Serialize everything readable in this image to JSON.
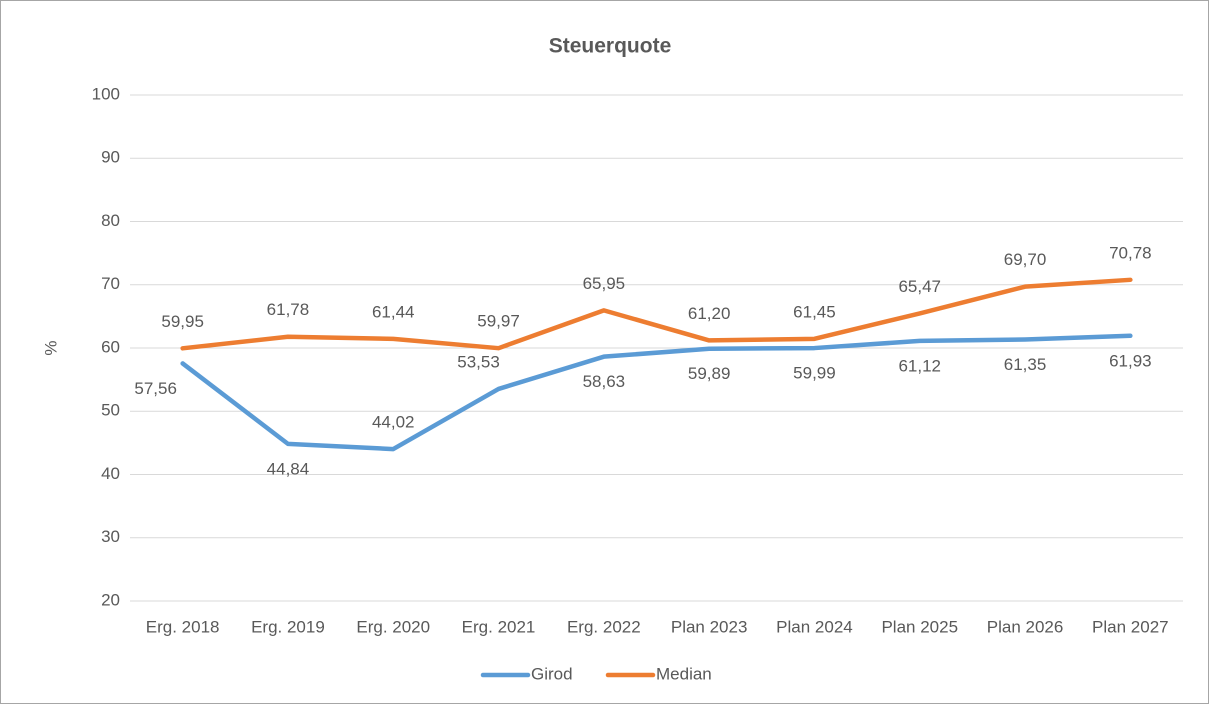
{
  "chart_data": {
    "type": "line",
    "title": "Steuerquote",
    "y_label": "%",
    "categories": [
      "Erg. 2018",
      "Erg. 2019",
      "Erg. 2020",
      "Erg. 2021",
      "Erg. 2022",
      "Plan 2023",
      "Plan 2024",
      "Plan 2025",
      "Plan 2026",
      "Plan 2027"
    ],
    "series": [
      {
        "name": "Girod",
        "color": "#5b9bd5",
        "values": [
          57.56,
          44.84,
          44.02,
          53.53,
          58.63,
          59.89,
          59.99,
          61.12,
          61.35,
          61.93
        ],
        "value_labels": [
          "57,56",
          "44,84",
          "44,02",
          "53,53",
          "58,63",
          "59,89",
          "59,99",
          "61,12",
          "61,35",
          "61,93"
        ]
      },
      {
        "name": "Median",
        "color": "#ed7d31",
        "values": [
          59.95,
          61.78,
          61.44,
          59.97,
          65.95,
          61.2,
          61.45,
          65.47,
          69.7,
          70.78
        ],
        "value_labels": [
          "59,95",
          "61,78",
          "61,44",
          "59,97",
          "65,95",
          "61,20",
          "61,45",
          "65,47",
          "69,70",
          "70,78"
        ]
      }
    ],
    "ylim": [
      20,
      100
    ],
    "yticks": [
      20,
      30,
      40,
      50,
      60,
      70,
      80,
      90,
      100
    ],
    "grid": true,
    "legend": "bottom"
  }
}
